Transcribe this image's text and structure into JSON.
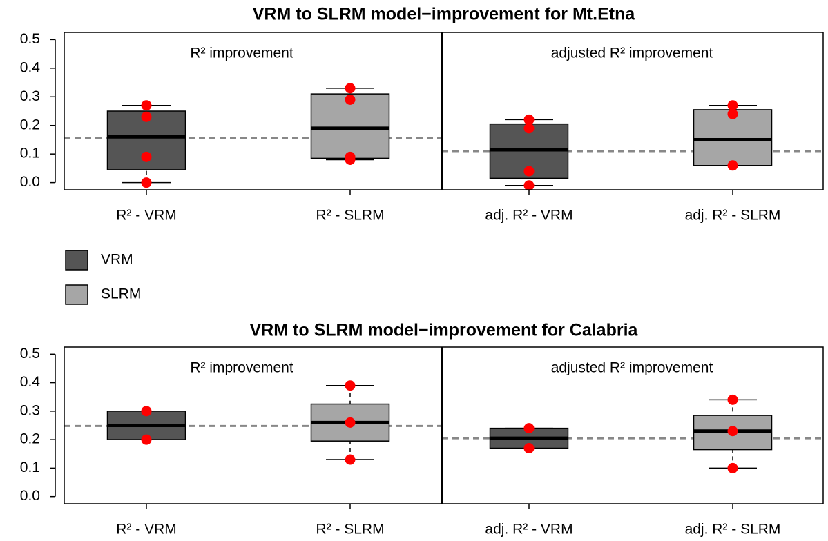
{
  "chart_data": [
    {
      "type": "box",
      "title": "VRM to SLRM model−improvement for Mt.Etna",
      "categories": [
        "R² - VRM",
        "R² - SLRM",
        "adj. R² - VRM",
        "adj. R² - SLRM"
      ],
      "panel_labels": [
        "R² improvement",
        "adjusted R² improvement"
      ],
      "ylim": [
        -0.025,
        0.525
      ],
      "yticks": [
        {
          "value": 0,
          "label": "0.0"
        },
        0.1,
        0.2,
        0.3,
        0.4,
        0.5
      ],
      "point_color": "#ff0000",
      "reference_lines": [
        0.155,
        0.11
      ],
      "boxes": [
        {
          "color": "#555555",
          "min": 0.0,
          "q1": 0.045,
          "median": 0.16,
          "q3": 0.25,
          "max": 0.27,
          "points": [
            0.27,
            0.23,
            0.09,
            0.0
          ]
        },
        {
          "color": "#a6a6a6",
          "min": 0.08,
          "q1": 0.085,
          "median": 0.19,
          "q3": 0.31,
          "max": 0.33,
          "points": [
            0.33,
            0.29,
            0.09,
            0.08
          ]
        },
        {
          "color": "#555555",
          "min": -0.01,
          "q1": 0.015,
          "median": 0.115,
          "q3": 0.205,
          "max": 0.22,
          "points": [
            0.22,
            0.19,
            0.04,
            -0.01
          ]
        },
        {
          "color": "#a6a6a6",
          "min": 0.06,
          "q1": 0.06,
          "median": 0.15,
          "q3": 0.255,
          "max": 0.27,
          "points": [
            0.27,
            0.24,
            0.06
          ]
        }
      ],
      "legend": [
        {
          "name": "VRM",
          "color": "#555555"
        },
        {
          "name": "SLRM",
          "color": "#a6a6a6"
        }
      ]
    },
    {
      "type": "box",
      "title": "VRM to SLRM model−improvement for Calabria",
      "categories": [
        "R² - VRM",
        "R² - SLRM",
        "adj. R² - VRM",
        "adj. R² - SLRM"
      ],
      "panel_labels": [
        "R² improvement",
        "adjusted R² improvement"
      ],
      "ylim": [
        -0.025,
        0.525
      ],
      "yticks": [
        {
          "value": 0,
          "label": "0.0"
        },
        0.1,
        0.2,
        0.3,
        0.4,
        0.5
      ],
      "point_color": "#ff0000",
      "reference_lines": [
        0.248,
        0.205
      ],
      "boxes": [
        {
          "color": "#555555",
          "min": 0.2,
          "q1": 0.2,
          "median": 0.25,
          "q3": 0.3,
          "max": 0.3,
          "points": [
            0.3,
            0.2
          ]
        },
        {
          "color": "#a6a6a6",
          "min": 0.13,
          "q1": 0.195,
          "median": 0.26,
          "q3": 0.325,
          "max": 0.39,
          "points": [
            0.39,
            0.26,
            0.13
          ]
        },
        {
          "color": "#555555",
          "min": 0.17,
          "q1": 0.17,
          "median": 0.205,
          "q3": 0.24,
          "max": 0.24,
          "points": [
            0.24,
            0.17
          ]
        },
        {
          "color": "#a6a6a6",
          "min": 0.1,
          "q1": 0.165,
          "median": 0.23,
          "q3": 0.285,
          "max": 0.34,
          "points": [
            0.34,
            0.23,
            0.1
          ]
        }
      ]
    }
  ]
}
